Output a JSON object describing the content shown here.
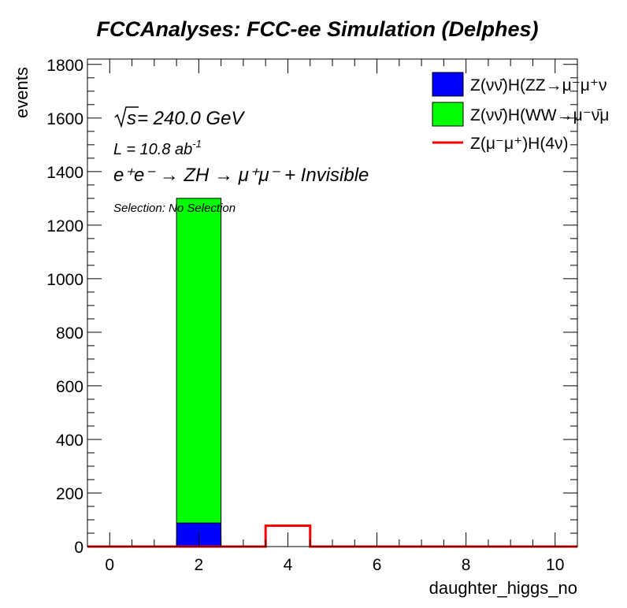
{
  "chart_data": {
    "type": "bar",
    "stacked": true,
    "title": "FCCAnalyses: FCC-ee Simulation (Delphes)",
    "xlabel": "daughter_higgs_no",
    "ylabel": "events",
    "xlim": [
      -0.5,
      10.5
    ],
    "ylim": [
      0,
      1820
    ],
    "x_ticks": [
      "0",
      "2",
      "4",
      "6",
      "8",
      "10"
    ],
    "x_tick_values": [
      0,
      2,
      4,
      6,
      8,
      10
    ],
    "y_ticks": [
      "0",
      "200",
      "400",
      "600",
      "800",
      "1000",
      "1200",
      "1400",
      "1600",
      "1800"
    ],
    "y_tick_values": [
      0,
      200,
      400,
      600,
      800,
      1000,
      1200,
      1400,
      1600,
      1800
    ],
    "bin_edges": [
      -0.5,
      0.5,
      1.5,
      2.5,
      3.5,
      4.5,
      5.5,
      6.5,
      7.5,
      8.5,
      9.5,
      10.5
    ],
    "series": [
      {
        "name": "Z(νν̄)H(ZZ→μ⁻μ⁺ν",
        "kind": "stacked-bar",
        "color": "#0000ff",
        "values": [
          0,
          0,
          88,
          0,
          0,
          0,
          0,
          0,
          0,
          0,
          0
        ]
      },
      {
        "name": "Z(νν̄)H(WW→μ⁻ν̄μ",
        "kind": "stacked-bar",
        "color": "#00ff00",
        "values": [
          0,
          0,
          1212,
          0,
          0,
          0,
          0,
          0,
          0,
          0,
          0
        ]
      },
      {
        "name": "Z(μ⁻μ⁺)H(4ν)",
        "kind": "step-line",
        "color": "#ff0000",
        "values": [
          0,
          0,
          0,
          0,
          78,
          0,
          0,
          0,
          0,
          0,
          0
        ]
      }
    ],
    "grid": false,
    "legend_position": "top-right",
    "annotations": {
      "sqrt_s": "s",
      "energy": " = 240.0 GeV",
      "lumi_main": "L = 10.8 ab",
      "lumi_exp": "-1",
      "process": "e⁺e⁻ → ZH → μ⁺μ⁻ + Invisible",
      "selection": "Selection: No Selection"
    }
  }
}
